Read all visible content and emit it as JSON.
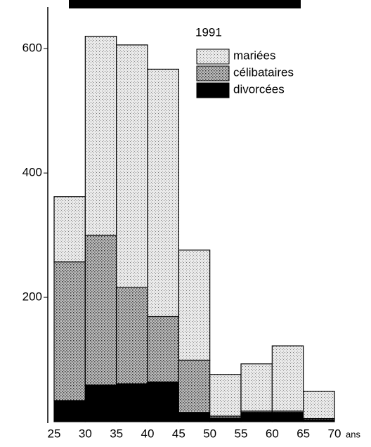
{
  "chart_data": {
    "type": "stacked_histogram",
    "annotation": "1991",
    "x_label": "ans",
    "bins": [
      25,
      30,
      35,
      40,
      45,
      50,
      55,
      60,
      65,
      70
    ],
    "series": [
      {
        "name": "divorcées",
        "color": "#000000",
        "values": [
          34,
          59,
          61,
          64,
          15,
          6,
          15,
          15,
          3
        ]
      },
      {
        "name": "célibataires",
        "color": "#8a8a8a",
        "values": [
          223,
          241,
          155,
          105,
          84,
          3,
          2,
          2,
          2
        ]
      },
      {
        "name": "mariées",
        "color": "#d4d4d4",
        "values": [
          105,
          320,
          390,
          398,
          177,
          67,
          76,
          105,
          44
        ]
      }
    ],
    "xlim": [
      25,
      70
    ],
    "xticks": [
      25,
      30,
      35,
      40,
      45,
      50,
      55,
      60,
      65,
      70
    ],
    "ylim": [
      0,
      650
    ],
    "yticks": [
      200,
      400,
      600
    ]
  }
}
